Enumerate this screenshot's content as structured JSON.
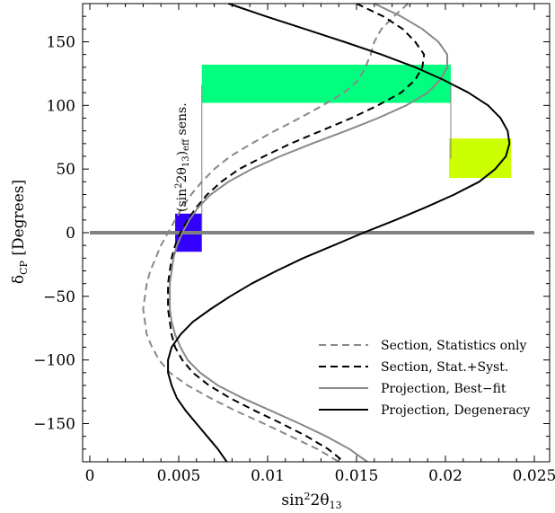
{
  "chart_data": {
    "type": "line",
    "xlabel": "sin²2θ13",
    "ylabel": "δCP [Degrees]",
    "xlim": [
      0,
      0.025
    ],
    "ylim": [
      -180,
      180
    ],
    "x_ticks": [
      {
        "value": 0,
        "label": "0"
      },
      {
        "value": 0.005,
        "label": "0.005"
      },
      {
        "value": 0.01,
        "label": "0.01"
      },
      {
        "value": 0.015,
        "label": "0.015"
      },
      {
        "value": 0.02,
        "label": "0.02"
      },
      {
        "value": 0.025,
        "label": "0.025"
      }
    ],
    "y_ticks": [
      {
        "value": -150,
        "label": "−150"
      },
      {
        "value": -100,
        "label": "−100"
      },
      {
        "value": -50,
        "label": "−50"
      },
      {
        "value": 0,
        "label": "0"
      },
      {
        "value": 50,
        "label": "50"
      },
      {
        "value": 100,
        "label": "100"
      },
      {
        "value": 150,
        "label": "150"
      }
    ],
    "legend_position": "bottom-right",
    "series": [
      {
        "name": "Section, Statistics only",
        "color": "#888888",
        "style": "dashed",
        "points": [
          [
            0.0179,
            180
          ],
          [
            0.0171,
            170
          ],
          [
            0.0164,
            160
          ],
          [
            0.016,
            150
          ],
          [
            0.0158,
            140
          ],
          [
            0.0155,
            130
          ],
          [
            0.0151,
            120
          ],
          [
            0.0143,
            110
          ],
          [
            0.0131,
            100
          ],
          [
            0.0118,
            90
          ],
          [
            0.0104,
            80
          ],
          [
            0.0091,
            70
          ],
          [
            0.0079,
            60
          ],
          [
            0.007,
            50
          ],
          [
            0.0063,
            40
          ],
          [
            0.0057,
            30
          ],
          [
            0.0052,
            20
          ],
          [
            0.0048,
            10
          ],
          [
            0.0044,
            0
          ],
          [
            0.004,
            -10
          ],
          [
            0.0037,
            -20
          ],
          [
            0.0034,
            -30
          ],
          [
            0.0032,
            -40
          ],
          [
            0.0031,
            -50
          ],
          [
            0.003,
            -60
          ],
          [
            0.0031,
            -70
          ],
          [
            0.0032,
            -80
          ],
          [
            0.0035,
            -90
          ],
          [
            0.0039,
            -100
          ],
          [
            0.0045,
            -110
          ],
          [
            0.0055,
            -120
          ],
          [
            0.0068,
            -130
          ],
          [
            0.0082,
            -140
          ],
          [
            0.0098,
            -150
          ],
          [
            0.0113,
            -160
          ],
          [
            0.0128,
            -170
          ],
          [
            0.014,
            -180
          ]
        ]
      },
      {
        "name": "Section, Stat.+Syst.",
        "color": "#000000",
        "style": "dashed",
        "points": [
          [
            0.015,
            180
          ],
          [
            0.0165,
            170
          ],
          [
            0.0176,
            160
          ],
          [
            0.0183,
            150
          ],
          [
            0.0188,
            140
          ],
          [
            0.0187,
            130
          ],
          [
            0.0183,
            120
          ],
          [
            0.0175,
            110
          ],
          [
            0.0162,
            100
          ],
          [
            0.0147,
            90
          ],
          [
            0.013,
            80
          ],
          [
            0.0113,
            70
          ],
          [
            0.0098,
            60
          ],
          [
            0.0084,
            50
          ],
          [
            0.0074,
            40
          ],
          [
            0.0066,
            30
          ],
          [
            0.006,
            20
          ],
          [
            0.0055,
            10
          ],
          [
            0.0051,
            0
          ],
          [
            0.0048,
            -10
          ],
          [
            0.0046,
            -20
          ],
          [
            0.0045,
            -30
          ],
          [
            0.0044,
            -40
          ],
          [
            0.0044,
            -50
          ],
          [
            0.0044,
            -60
          ],
          [
            0.0045,
            -70
          ],
          [
            0.0046,
            -80
          ],
          [
            0.0048,
            -90
          ],
          [
            0.0052,
            -100
          ],
          [
            0.0058,
            -110
          ],
          [
            0.0067,
            -120
          ],
          [
            0.0079,
            -130
          ],
          [
            0.0093,
            -140
          ],
          [
            0.0108,
            -150
          ],
          [
            0.0122,
            -160
          ],
          [
            0.0134,
            -170
          ],
          [
            0.0143,
            -180
          ]
        ]
      },
      {
        "name": "Projection, Best−fit",
        "color": "#888888",
        "style": "solid",
        "points": [
          [
            0.016,
            180
          ],
          [
            0.0175,
            170
          ],
          [
            0.0187,
            160
          ],
          [
            0.0196,
            150
          ],
          [
            0.0201,
            140
          ],
          [
            0.0201,
            130
          ],
          [
            0.0197,
            120
          ],
          [
            0.019,
            110
          ],
          [
            0.0178,
            100
          ],
          [
            0.0162,
            90
          ],
          [
            0.0144,
            80
          ],
          [
            0.0125,
            70
          ],
          [
            0.0107,
            60
          ],
          [
            0.0091,
            50
          ],
          [
            0.0078,
            40
          ],
          [
            0.0068,
            30
          ],
          [
            0.0061,
            20
          ],
          [
            0.0056,
            10
          ],
          [
            0.0052,
            0
          ],
          [
            0.0049,
            -10
          ],
          [
            0.0047,
            -20
          ],
          [
            0.0046,
            -30
          ],
          [
            0.0045,
            -40
          ],
          [
            0.0045,
            -50
          ],
          [
            0.0045,
            -60
          ],
          [
            0.0046,
            -70
          ],
          [
            0.0048,
            -80
          ],
          [
            0.0051,
            -90
          ],
          [
            0.0055,
            -100
          ],
          [
            0.0062,
            -110
          ],
          [
            0.0072,
            -120
          ],
          [
            0.0086,
            -130
          ],
          [
            0.0102,
            -140
          ],
          [
            0.0118,
            -150
          ],
          [
            0.0133,
            -160
          ],
          [
            0.0146,
            -170
          ],
          [
            0.0156,
            -180
          ]
        ]
      },
      {
        "name": "Projection, Degeneracy",
        "color": "#000000",
        "style": "solid",
        "points": [
          [
            0.0078,
            180
          ],
          [
            0.0099,
            170
          ],
          [
            0.0121,
            160
          ],
          [
            0.0143,
            150
          ],
          [
            0.0164,
            140
          ],
          [
            0.0183,
            130
          ],
          [
            0.0199,
            120
          ],
          [
            0.0213,
            110
          ],
          [
            0.0224,
            100
          ],
          [
            0.0231,
            90
          ],
          [
            0.0235,
            80
          ],
          [
            0.0236,
            70
          ],
          [
            0.0234,
            60
          ],
          [
            0.0228,
            50
          ],
          [
            0.0219,
            40
          ],
          [
            0.0205,
            30
          ],
          [
            0.0189,
            20
          ],
          [
            0.0172,
            10
          ],
          [
            0.0154,
            0
          ],
          [
            0.0137,
            -10
          ],
          [
            0.012,
            -20
          ],
          [
            0.0105,
            -30
          ],
          [
            0.0091,
            -40
          ],
          [
            0.0079,
            -50
          ],
          [
            0.0068,
            -60
          ],
          [
            0.0058,
            -70
          ],
          [
            0.0051,
            -80
          ],
          [
            0.0046,
            -90
          ],
          [
            0.0044,
            -100
          ],
          [
            0.0044,
            -110
          ],
          [
            0.0046,
            -120
          ],
          [
            0.0049,
            -130
          ],
          [
            0.0054,
            -140
          ],
          [
            0.006,
            -150
          ],
          [
            0.0066,
            -160
          ],
          [
            0.0072,
            -170
          ],
          [
            0.0077,
            -180
          ]
        ]
      }
    ],
    "horizontal_line": {
      "y": 0,
      "color": "#808080"
    },
    "boxes": [
      {
        "name": "green-box",
        "color": "#00ff7f",
        "x": [
          0.0063,
          0.0203
        ],
        "y": [
          102,
          132
        ]
      },
      {
        "name": "yellow-box",
        "color": "#ccff00",
        "x": [
          0.0202,
          0.0237
        ],
        "y": [
          43,
          74
        ]
      },
      {
        "name": "blue-box",
        "color": "#3300ff",
        "x": [
          0.0048,
          0.0063
        ],
        "y": [
          -15,
          15
        ]
      }
    ],
    "annotation": {
      "text": "(sin²2θ13)eff sens.",
      "color": "#808080"
    }
  }
}
